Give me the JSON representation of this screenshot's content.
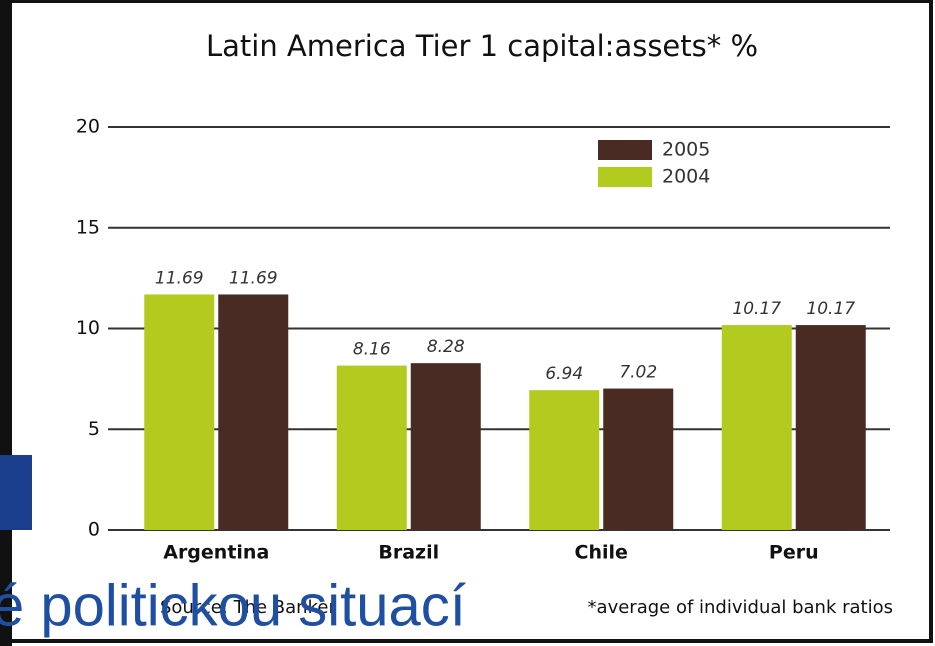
{
  "chart_data": {
    "type": "bar",
    "title": "Latin America Tier 1 capital:assets* %",
    "categories": [
      "Argentina",
      "Brazil",
      "Chile",
      "Peru"
    ],
    "series": [
      {
        "name": "2004",
        "color": "#b3cb1f",
        "values": [
          11.69,
          8.16,
          6.94,
          10.17
        ]
      },
      {
        "name": "2005",
        "color": "#4a2b24",
        "values": [
          11.69,
          8.28,
          7.02,
          10.17
        ]
      }
    ],
    "ylim": [
      0,
      20
    ],
    "yticks": [
      0,
      5,
      10,
      15,
      20
    ],
    "grid": true,
    "legend": "top-right",
    "source": "Source: The Banker",
    "footnote": "*average of individual bank ratios"
  },
  "overlay_text": "é politickou situací"
}
